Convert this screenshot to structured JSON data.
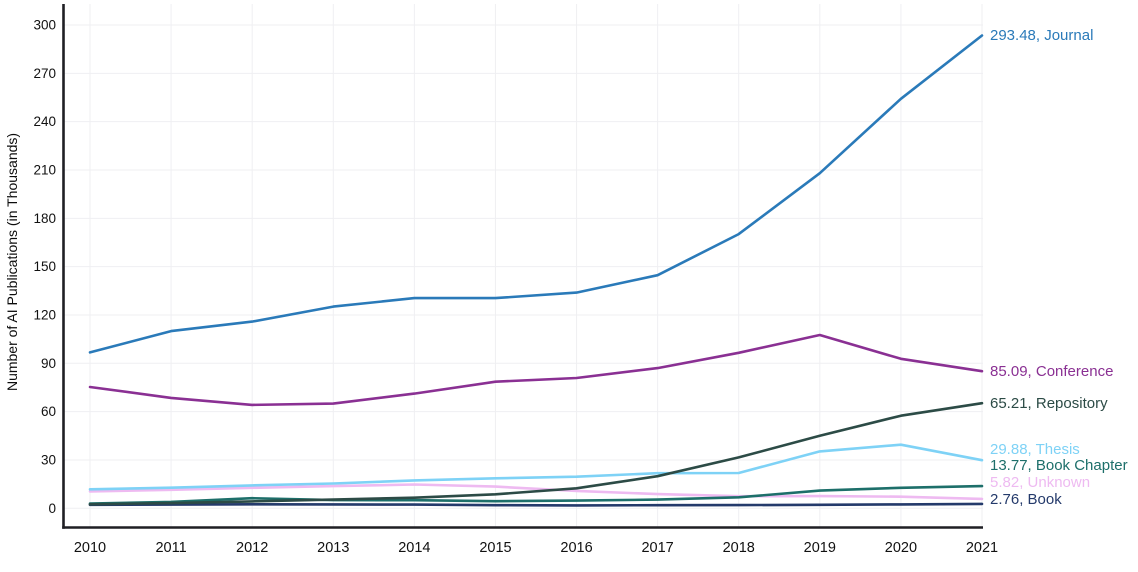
{
  "page": {
    "background": "#ffffff"
  },
  "chart_data": {
    "type": "line",
    "title": "",
    "xlabel": "",
    "ylabel": "Number of AI Publications (in Thousands)",
    "x": [
      2010,
      2011,
      2012,
      2013,
      2014,
      2015,
      2016,
      2017,
      2018,
      2019,
      2020,
      2021
    ],
    "x_tick_labels": [
      "2010",
      "2011",
      "2012",
      "2013",
      "2014",
      "2015",
      "2016",
      "2017",
      "2018",
      "2019",
      "2020",
      "2021"
    ],
    "ylim": [
      0,
      300
    ],
    "ytick_interval": 30,
    "ytick_labels": [
      "0",
      "30",
      "60",
      "90",
      "120",
      "150",
      "180",
      "210",
      "240",
      "270",
      "300"
    ],
    "grid": true,
    "legend_position": "right-line-end-labels",
    "axis_color": "#1f1f24",
    "grid_color": "#efeff2",
    "tick_label_color": "#111111",
    "series": [
      {
        "name": "Journal",
        "color": "#2a7ab9",
        "end_label": "293.48, Journal",
        "end_value": 293.48,
        "label_y_hint": 35,
        "values": [
          96.8,
          110.0,
          115.9,
          125.2,
          130.5,
          130.5,
          133.9,
          144.7,
          170.2,
          208.0,
          254.2,
          293.48
        ]
      },
      {
        "name": "Conference",
        "color": "#8a3093",
        "end_label": "85.09, Conference",
        "end_value": 85.09,
        "label_y_hint": 371,
        "values": [
          75.3,
          68.5,
          64.2,
          65.0,
          71.2,
          78.6,
          80.9,
          87.0,
          96.5,
          107.6,
          92.8,
          85.09
        ]
      },
      {
        "name": "Repository",
        "color": "#2c4b46",
        "end_label": "65.21, Repository",
        "end_value": 65.21,
        "label_y_hint": 403,
        "values": [
          2.5,
          3.2,
          4.3,
          5.4,
          6.6,
          8.7,
          12.4,
          19.9,
          31.6,
          45.0,
          57.5,
          65.21
        ]
      },
      {
        "name": "Thesis",
        "color": "#7ed2f6",
        "end_label": "29.88, Thesis",
        "end_value": 29.88,
        "label_y_hint": 449,
        "values": [
          11.8,
          12.8,
          14.2,
          15.4,
          17.3,
          18.6,
          19.6,
          21.8,
          21.9,
          35.3,
          39.5,
          29.88
        ]
      },
      {
        "name": "Book Chapter",
        "color": "#1d6f6a",
        "end_label": "13.77, Book Chapter",
        "end_value": 13.77,
        "label_y_hint": 465,
        "values": [
          2.9,
          4.0,
          6.3,
          5.1,
          5.0,
          4.4,
          4.8,
          5.4,
          6.8,
          11.0,
          12.7,
          13.77
        ]
      },
      {
        "name": "Unknown",
        "color": "#eebaf1",
        "end_label": "5.82, Unknown",
        "end_value": 5.82,
        "label_y_hint": 482,
        "values": [
          10.5,
          11.5,
          12.7,
          13.8,
          14.8,
          13.5,
          10.8,
          8.8,
          7.5,
          7.6,
          7.2,
          5.82
        ]
      },
      {
        "name": "Book",
        "color": "#243a6b",
        "end_label": "2.76, Book",
        "end_value": 2.76,
        "label_y_hint": 499,
        "values": [
          2.2,
          2.3,
          2.5,
          2.4,
          2.3,
          1.9,
          1.8,
          1.9,
          2.0,
          2.2,
          2.4,
          2.76
        ]
      }
    ]
  }
}
